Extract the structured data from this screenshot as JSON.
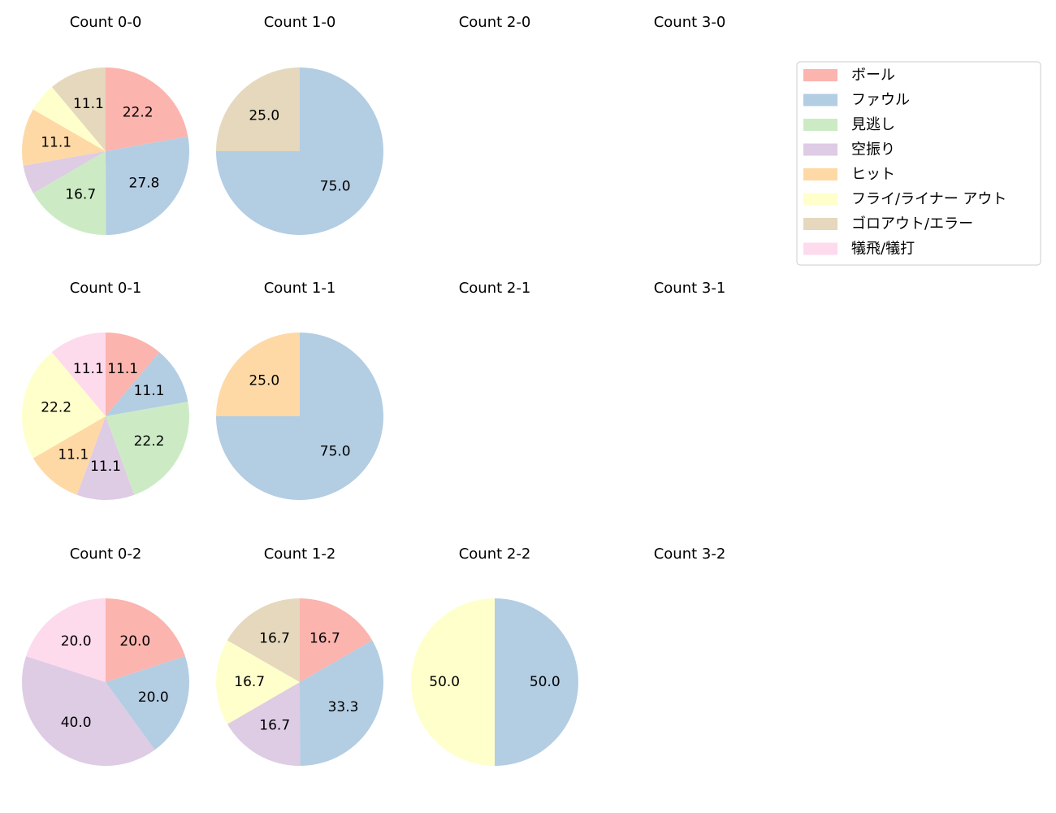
{
  "chart_data": {
    "type": "pie",
    "categories": [
      "ボール",
      "ファウル",
      "見逃し",
      "空振り",
      "ヒット",
      "フライ/ライナー アウト",
      "ゴロアウト/エラー",
      "犠飛/犠打"
    ],
    "colors": [
      "#fbb4ae",
      "#b3cde3",
      "#ccebc5",
      "#decbe4",
      "#fed9a6",
      "#ffffcc",
      "#e5d8bd",
      "#fddaec"
    ],
    "legend": "upper right",
    "charts": [
      {
        "title": "Count 0-0",
        "values": [
          22.2,
          27.8,
          16.7,
          5.6,
          11.1,
          5.6,
          11.1,
          null
        ],
        "value_labels": [
          "22.2",
          "27.8",
          "16.7",
          null,
          "11.1",
          null,
          "11.1",
          null
        ]
      },
      {
        "title": "Count 1-0",
        "values": [
          null,
          75,
          null,
          null,
          null,
          null,
          25,
          null
        ],
        "value_labels": [
          null,
          "75.0",
          null,
          null,
          null,
          null,
          "25.0",
          null
        ]
      },
      {
        "title": "Count 2-0"
      },
      {
        "title": "Count 3-0"
      },
      {
        "title": "Count 0-1",
        "values": [
          11.1,
          11.1,
          22.2,
          11.1,
          11.1,
          22.2,
          null,
          11.1
        ],
        "value_labels": [
          "11.1",
          "11.1",
          "22.2",
          "11.1",
          "11.1",
          "22.2",
          null,
          "11.1"
        ]
      },
      {
        "title": "Count 1-1",
        "values": [
          null,
          75,
          null,
          null,
          25,
          null,
          null,
          null
        ],
        "value_labels": [
          null,
          "75.0",
          null,
          null,
          "25.0",
          null,
          null,
          null
        ]
      },
      {
        "title": "Count 2-1"
      },
      {
        "title": "Count 3-1"
      },
      {
        "title": "Count 0-2",
        "values": [
          20,
          20,
          null,
          40,
          null,
          null,
          null,
          20
        ],
        "value_labels": [
          "20.0",
          "20.0",
          null,
          "40.0",
          null,
          null,
          null,
          "20.0"
        ]
      },
      {
        "title": "Count 1-2",
        "values": [
          16.7,
          33.3,
          null,
          16.7,
          null,
          16.7,
          16.7,
          null
        ],
        "value_labels": [
          "16.7",
          "33.3",
          null,
          "16.7",
          null,
          "16.7",
          "16.7",
          null
        ]
      },
      {
        "title": "Count 2-2",
        "values": [
          null,
          50,
          null,
          null,
          null,
          50,
          null,
          null
        ],
        "value_labels": [
          null,
          "50.0",
          null,
          null,
          null,
          "50.0",
          null,
          null
        ]
      },
      {
        "title": "Count 3-2"
      }
    ]
  }
}
